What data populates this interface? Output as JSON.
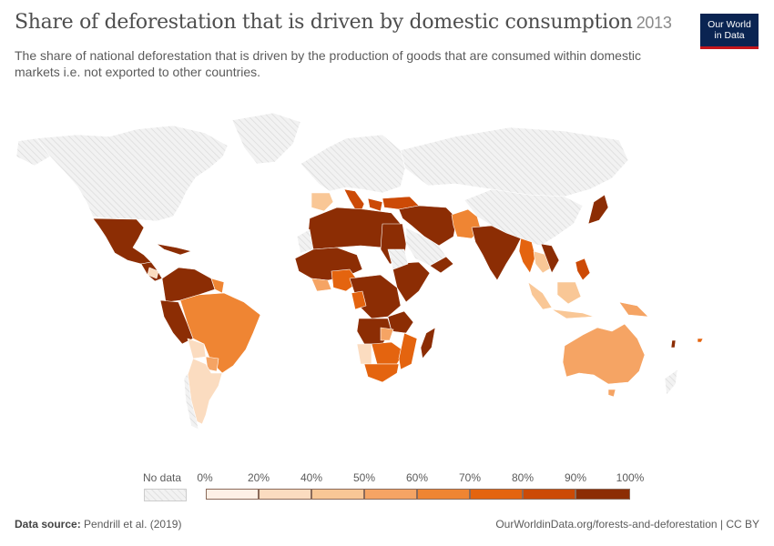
{
  "header": {
    "title": "Share of deforestation that is driven by domestic consumption",
    "year": "2013",
    "subtitle": "The share of national deforestation that is driven by the production of goods that are consumed within domestic markets i.e. not exported to other countries."
  },
  "logo": {
    "line1": "Our World",
    "line2": "in Data"
  },
  "legend": {
    "no_data_label": "No data",
    "ticks": [
      "0%",
      "20%",
      "40%",
      "50%",
      "60%",
      "70%",
      "80%",
      "90%",
      "100%"
    ],
    "colors": [
      "#fdf0e6",
      "#fbdcc0",
      "#f9c796",
      "#f5a464",
      "#ef8533",
      "#e4640f",
      "#cc4a06",
      "#8c2d04"
    ]
  },
  "footer": {
    "source_label": "Data source:",
    "source": "Pendrill et al. (2019)",
    "url": "OurWorldinData.org/forests-and-deforestation | CC BY"
  },
  "colors": {
    "no_data": "#eeeeee",
    "border": "#ffffff",
    "title": "#4e4e4e",
    "logo_bg": "#0a2452",
    "logo_accent": "#c4161c"
  }
}
